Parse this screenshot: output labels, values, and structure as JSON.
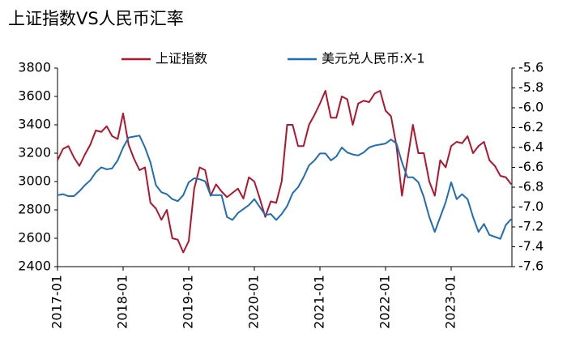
{
  "chart_data": {
    "type": "line",
    "title": "上证指数VS人民币汇率",
    "x": [
      "2017-01",
      "2017-02",
      "2017-03",
      "2017-04",
      "2017-05",
      "2017-06",
      "2017-07",
      "2017-08",
      "2017-09",
      "2017-10",
      "2017-11",
      "2017-12",
      "2018-01",
      "2018-02",
      "2018-03",
      "2018-04",
      "2018-05",
      "2018-06",
      "2018-07",
      "2018-08",
      "2018-09",
      "2018-10",
      "2018-11",
      "2018-12",
      "2019-01",
      "2019-02",
      "2019-03",
      "2019-04",
      "2019-05",
      "2019-06",
      "2019-07",
      "2019-08",
      "2019-09",
      "2019-10",
      "2019-11",
      "2019-12",
      "2020-01",
      "2020-02",
      "2020-03",
      "2020-04",
      "2020-05",
      "2020-06",
      "2020-07",
      "2020-08",
      "2020-09",
      "2020-10",
      "2020-11",
      "2020-12",
      "2021-01",
      "2021-02",
      "2021-03",
      "2021-04",
      "2021-05",
      "2021-06",
      "2021-07",
      "2021-08",
      "2021-09",
      "2021-10",
      "2021-11",
      "2021-12",
      "2022-01",
      "2022-02",
      "2022-03",
      "2022-04",
      "2022-05",
      "2022-06",
      "2022-07",
      "2022-08",
      "2022-09",
      "2022-10",
      "2022-11",
      "2022-12",
      "2023-01",
      "2023-02",
      "2023-03",
      "2023-04",
      "2023-05",
      "2023-06",
      "2023-07",
      "2023-08",
      "2023-09",
      "2023-10",
      "2023-11",
      "2023-12"
    ],
    "xticks": [
      "2017-01",
      "2018-01",
      "2019-01",
      "2020-01",
      "2021-01",
      "2022-01",
      "2023-01"
    ],
    "series": [
      {
        "name": "上证指数",
        "color": "#b0152e",
        "axis": "y",
        "values": [
          3150,
          3230,
          3250,
          3170,
          3110,
          3190,
          3260,
          3360,
          3350,
          3390,
          3320,
          3300,
          3480,
          3260,
          3160,
          3080,
          3100,
          2850,
          2810,
          2730,
          2800,
          2600,
          2590,
          2500,
          2580,
          2950,
          3100,
          3080,
          2900,
          2980,
          2930,
          2890,
          2920,
          2950,
          2880,
          3030,
          3000,
          2880,
          2750,
          2860,
          2850,
          3000,
          3400,
          3400,
          3250,
          3250,
          3400,
          3470,
          3550,
          3640,
          3450,
          3450,
          3600,
          3580,
          3400,
          3550,
          3570,
          3560,
          3620,
          3640,
          3500,
          3460,
          3250,
          2900,
          3150,
          3400,
          3200,
          3200,
          3000,
          2900,
          3150,
          3100,
          3250,
          3280,
          3270,
          3320,
          3200,
          3250,
          3280,
          3150,
          3110,
          3040,
          3030,
          2980
        ]
      },
      {
        "name": "美元兑人民币:X-1",
        "color": "#1f6db5",
        "axis": "y2",
        "values": [
          -6.88,
          -6.87,
          -6.89,
          -6.89,
          -6.84,
          -6.78,
          -6.73,
          -6.65,
          -6.6,
          -6.62,
          -6.61,
          -6.53,
          -6.4,
          -6.3,
          -6.29,
          -6.28,
          -6.4,
          -6.55,
          -6.78,
          -6.85,
          -6.87,
          -6.92,
          -6.94,
          -6.88,
          -6.75,
          -6.71,
          -6.72,
          -6.74,
          -6.88,
          -6.88,
          -6.88,
          -7.1,
          -7.13,
          -7.06,
          -7.02,
          -6.98,
          -6.92,
          -7.0,
          -7.08,
          -7.07,
          -7.13,
          -7.07,
          -6.99,
          -6.86,
          -6.8,
          -6.7,
          -6.58,
          -6.53,
          -6.46,
          -6.46,
          -6.53,
          -6.49,
          -6.4,
          -6.45,
          -6.47,
          -6.48,
          -6.45,
          -6.4,
          -6.38,
          -6.37,
          -6.36,
          -6.32,
          -6.36,
          -6.55,
          -6.7,
          -6.7,
          -6.75,
          -6.9,
          -7.1,
          -7.25,
          -7.1,
          -6.95,
          -6.75,
          -6.92,
          -6.87,
          -6.92,
          -7.1,
          -7.25,
          -7.17,
          -7.28,
          -7.3,
          -7.32,
          -7.18,
          -7.12
        ]
      }
    ],
    "ylim": [
      2400,
      3800
    ],
    "yticks": [
      2400,
      2600,
      2800,
      3000,
      3200,
      3400,
      3600,
      3800
    ],
    "y2lim": [
      -7.6,
      -5.6
    ],
    "y2ticks": [
      -7.6,
      -7.4,
      -7.2,
      {
        "value": -7,
        "label": "-7.0"
      },
      -6.8,
      -6.6,
      -6.4,
      -6.2,
      {
        "value": -6,
        "label": "-6.0"
      },
      -5.8,
      -5.6
    ],
    "grid": false,
    "legend": "top"
  }
}
